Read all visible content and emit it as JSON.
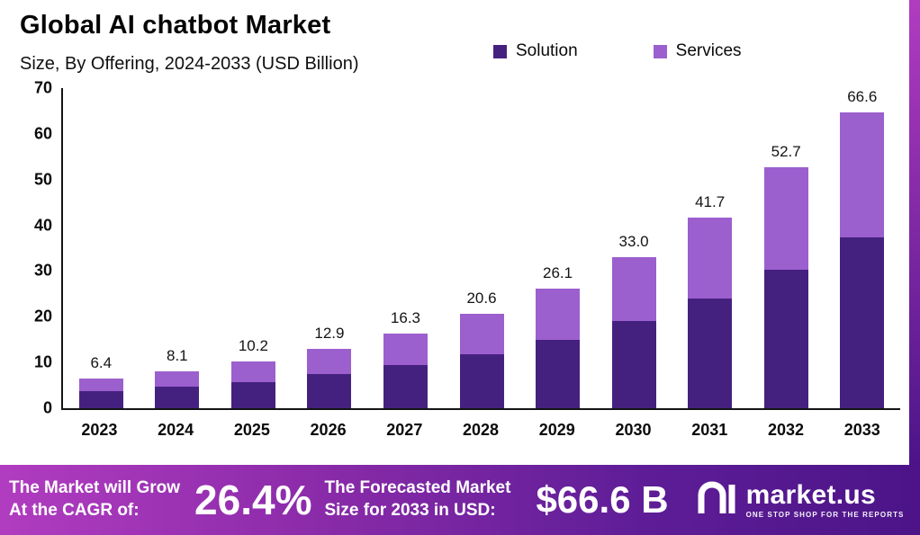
{
  "header": {
    "title": "Global AI chatbot Market",
    "subtitle": "Size, By Offering, 2024-2033 (USD Billion)"
  },
  "legend": [
    {
      "label": "Solution",
      "color": "#45217f"
    },
    {
      "label": "Services",
      "color": "#9c5fce"
    }
  ],
  "chart_data": {
    "type": "bar",
    "stacked": true,
    "title": "Global AI chatbot Market Size, By Offering, 2024-2033 (USD Billion)",
    "categories": [
      "2023",
      "2024",
      "2025",
      "2026",
      "2027",
      "2028",
      "2029",
      "2030",
      "2031",
      "2032",
      "2033"
    ],
    "series": [
      {
        "name": "Solution",
        "color": "#45217f",
        "values": [
          3.8,
          4.8,
          5.8,
          7.5,
          9.4,
          11.8,
          15.0,
          19.0,
          24.0,
          30.3,
          38.5
        ]
      },
      {
        "name": "Services",
        "color": "#9c5fce",
        "values": [
          2.6,
          3.3,
          4.4,
          5.4,
          6.9,
          8.8,
          11.1,
          14.0,
          17.7,
          22.4,
          28.1
        ]
      }
    ],
    "totals": [
      6.4,
      8.1,
      10.2,
      12.9,
      16.3,
      20.6,
      26.1,
      33.0,
      41.7,
      52.7,
      66.6
    ],
    "total_labels": [
      "6.4",
      "8.1",
      "10.2",
      "12.9",
      "16.3",
      "20.6",
      "26.1",
      "33.0",
      "41.7",
      "52.7",
      "66.6"
    ],
    "xlabel": "",
    "ylabel": "",
    "ylim": [
      0,
      70
    ],
    "yticks": [
      0,
      10,
      20,
      30,
      40,
      50,
      60,
      70
    ],
    "grid": false,
    "legend_position": "top"
  },
  "banner": {
    "left_line1": "The Market will Grow",
    "left_line2": "At the CAGR of:",
    "cagr": "26.4%",
    "mid_line1": "The Forecasted Market",
    "mid_line2": "Size for 2033 in USD:",
    "forecast": "$66.6 B",
    "brand": "market.us",
    "tagline": "ONE STOP SHOP FOR THE REPORTS"
  },
  "colors": {
    "solution": "#45217f",
    "services": "#9c5fce",
    "banner_gradient_start": "#b13cc0",
    "banner_gradient_end": "#4c1488",
    "axis": "#141414"
  }
}
